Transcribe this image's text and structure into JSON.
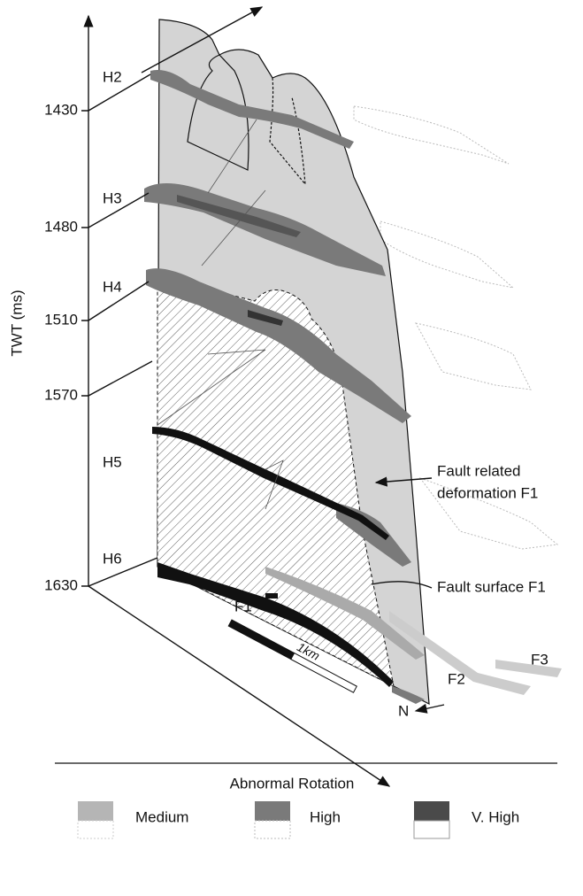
{
  "axis": {
    "label": "TWT (ms)",
    "ticks": [
      1430,
      1480,
      1510,
      1570,
      1630
    ]
  },
  "horizons": [
    "H2",
    "H3",
    "H4",
    "H5",
    "H6"
  ],
  "faults": [
    "F1",
    "F2",
    "F3"
  ],
  "annotations": {
    "deformation": [
      "Fault related",
      "deformation F1"
    ],
    "surface": "Fault surface F1"
  },
  "scale_bar": "1km",
  "north": "N",
  "legend": {
    "title": "Abnormal Rotation",
    "items": [
      "Medium",
      "High",
      "V. High"
    ]
  }
}
